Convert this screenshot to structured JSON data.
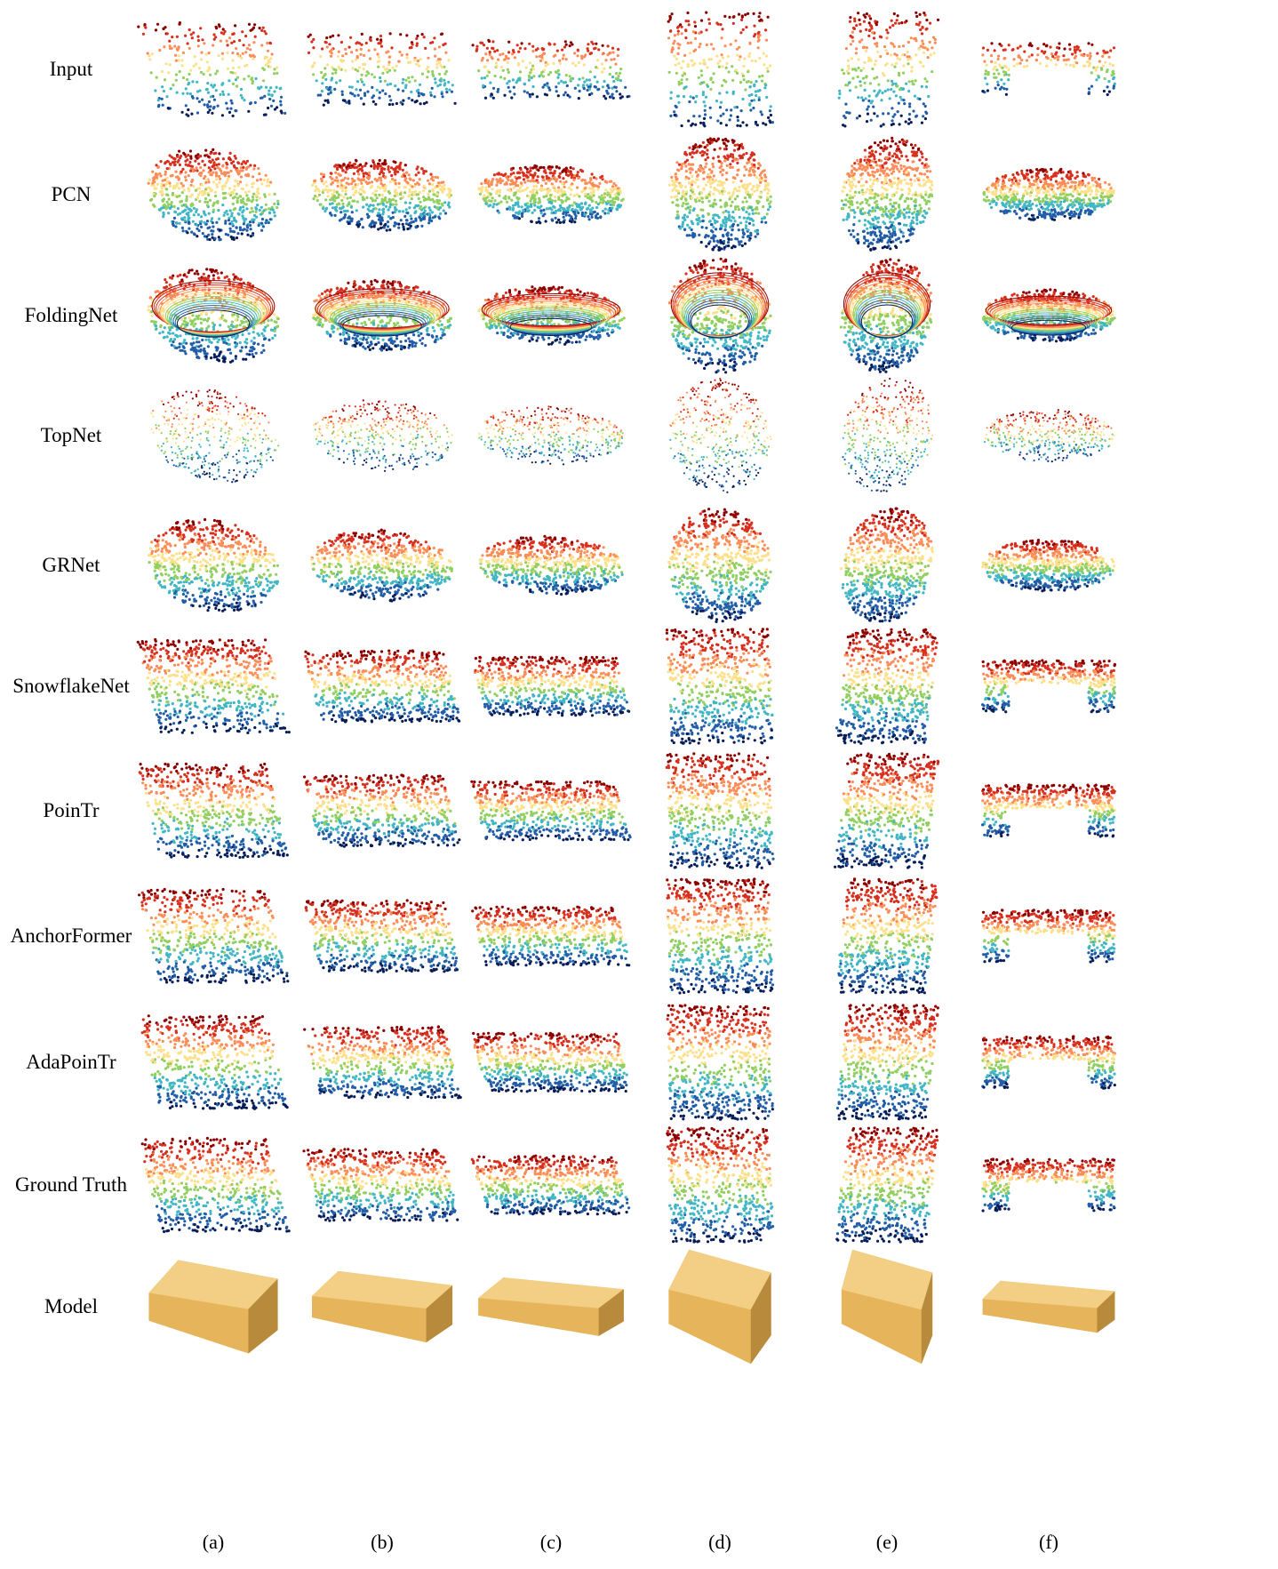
{
  "figure": {
    "rows": [
      {
        "label": "Input",
        "kind": "points"
      },
      {
        "label": "PCN",
        "kind": "blob"
      },
      {
        "label": "FoldingNet",
        "kind": "fold"
      },
      {
        "label": "TopNet",
        "kind": "scatter"
      },
      {
        "label": "GRNet",
        "kind": "blob"
      },
      {
        "label": "SnowflakeNet",
        "kind": "points"
      },
      {
        "label": "PoinTr",
        "kind": "points"
      },
      {
        "label": "AnchorFormer",
        "kind": "points"
      },
      {
        "label": "AdaPoinTr",
        "kind": "points"
      },
      {
        "label": "Ground Truth",
        "kind": "points"
      },
      {
        "label": "Model",
        "kind": "mesh"
      }
    ],
    "columns": [
      "(a)",
      "(b)",
      "(c)",
      "(d)",
      "(e)",
      "(f)"
    ],
    "colormap": [
      "#8b0000",
      "#d7301f",
      "#fc8d59",
      "#fee08b",
      "#91cf60",
      "#41b6c4",
      "#225ea8",
      "#081d58"
    ],
    "model_color": "#e6b45a"
  }
}
